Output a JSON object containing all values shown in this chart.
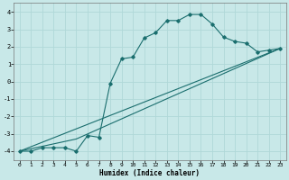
{
  "xlabel": "Humidex (Indice chaleur)",
  "ylabel": "",
  "xlim": [
    -0.5,
    23.5
  ],
  "ylim": [
    -4.5,
    4.5
  ],
  "xticks": [
    0,
    1,
    2,
    3,
    4,
    5,
    6,
    7,
    8,
    9,
    10,
    11,
    12,
    13,
    14,
    15,
    16,
    17,
    18,
    19,
    20,
    21,
    22,
    23
  ],
  "yticks": [
    -4,
    -3,
    -2,
    -1,
    0,
    1,
    2,
    3,
    4
  ],
  "bg_color": "#c8e8e8",
  "grid_color": "#b0d8d8",
  "line_color": "#1a6e6e",
  "line1_x": [
    0,
    1,
    2,
    3,
    4,
    5,
    6,
    7,
    8,
    9,
    10,
    11,
    12,
    13,
    14,
    15,
    16,
    17,
    18,
    19,
    20,
    21,
    22,
    23
  ],
  "line1_y": [
    -4.0,
    -4.0,
    -3.8,
    -3.8,
    -3.8,
    -4.0,
    -3.1,
    -3.2,
    -0.1,
    1.3,
    1.4,
    2.5,
    2.8,
    3.5,
    3.5,
    3.85,
    3.85,
    3.3,
    2.55,
    2.3,
    2.2,
    1.7,
    1.8,
    1.9
  ],
  "line2_x": [
    0,
    23
  ],
  "line2_y": [
    -4.0,
    1.9
  ],
  "line3_x": [
    0,
    5,
    23
  ],
  "line3_y": [
    -4.0,
    -3.3,
    1.9
  ],
  "figsize": [
    3.2,
    2.0
  ],
  "dpi": 100
}
